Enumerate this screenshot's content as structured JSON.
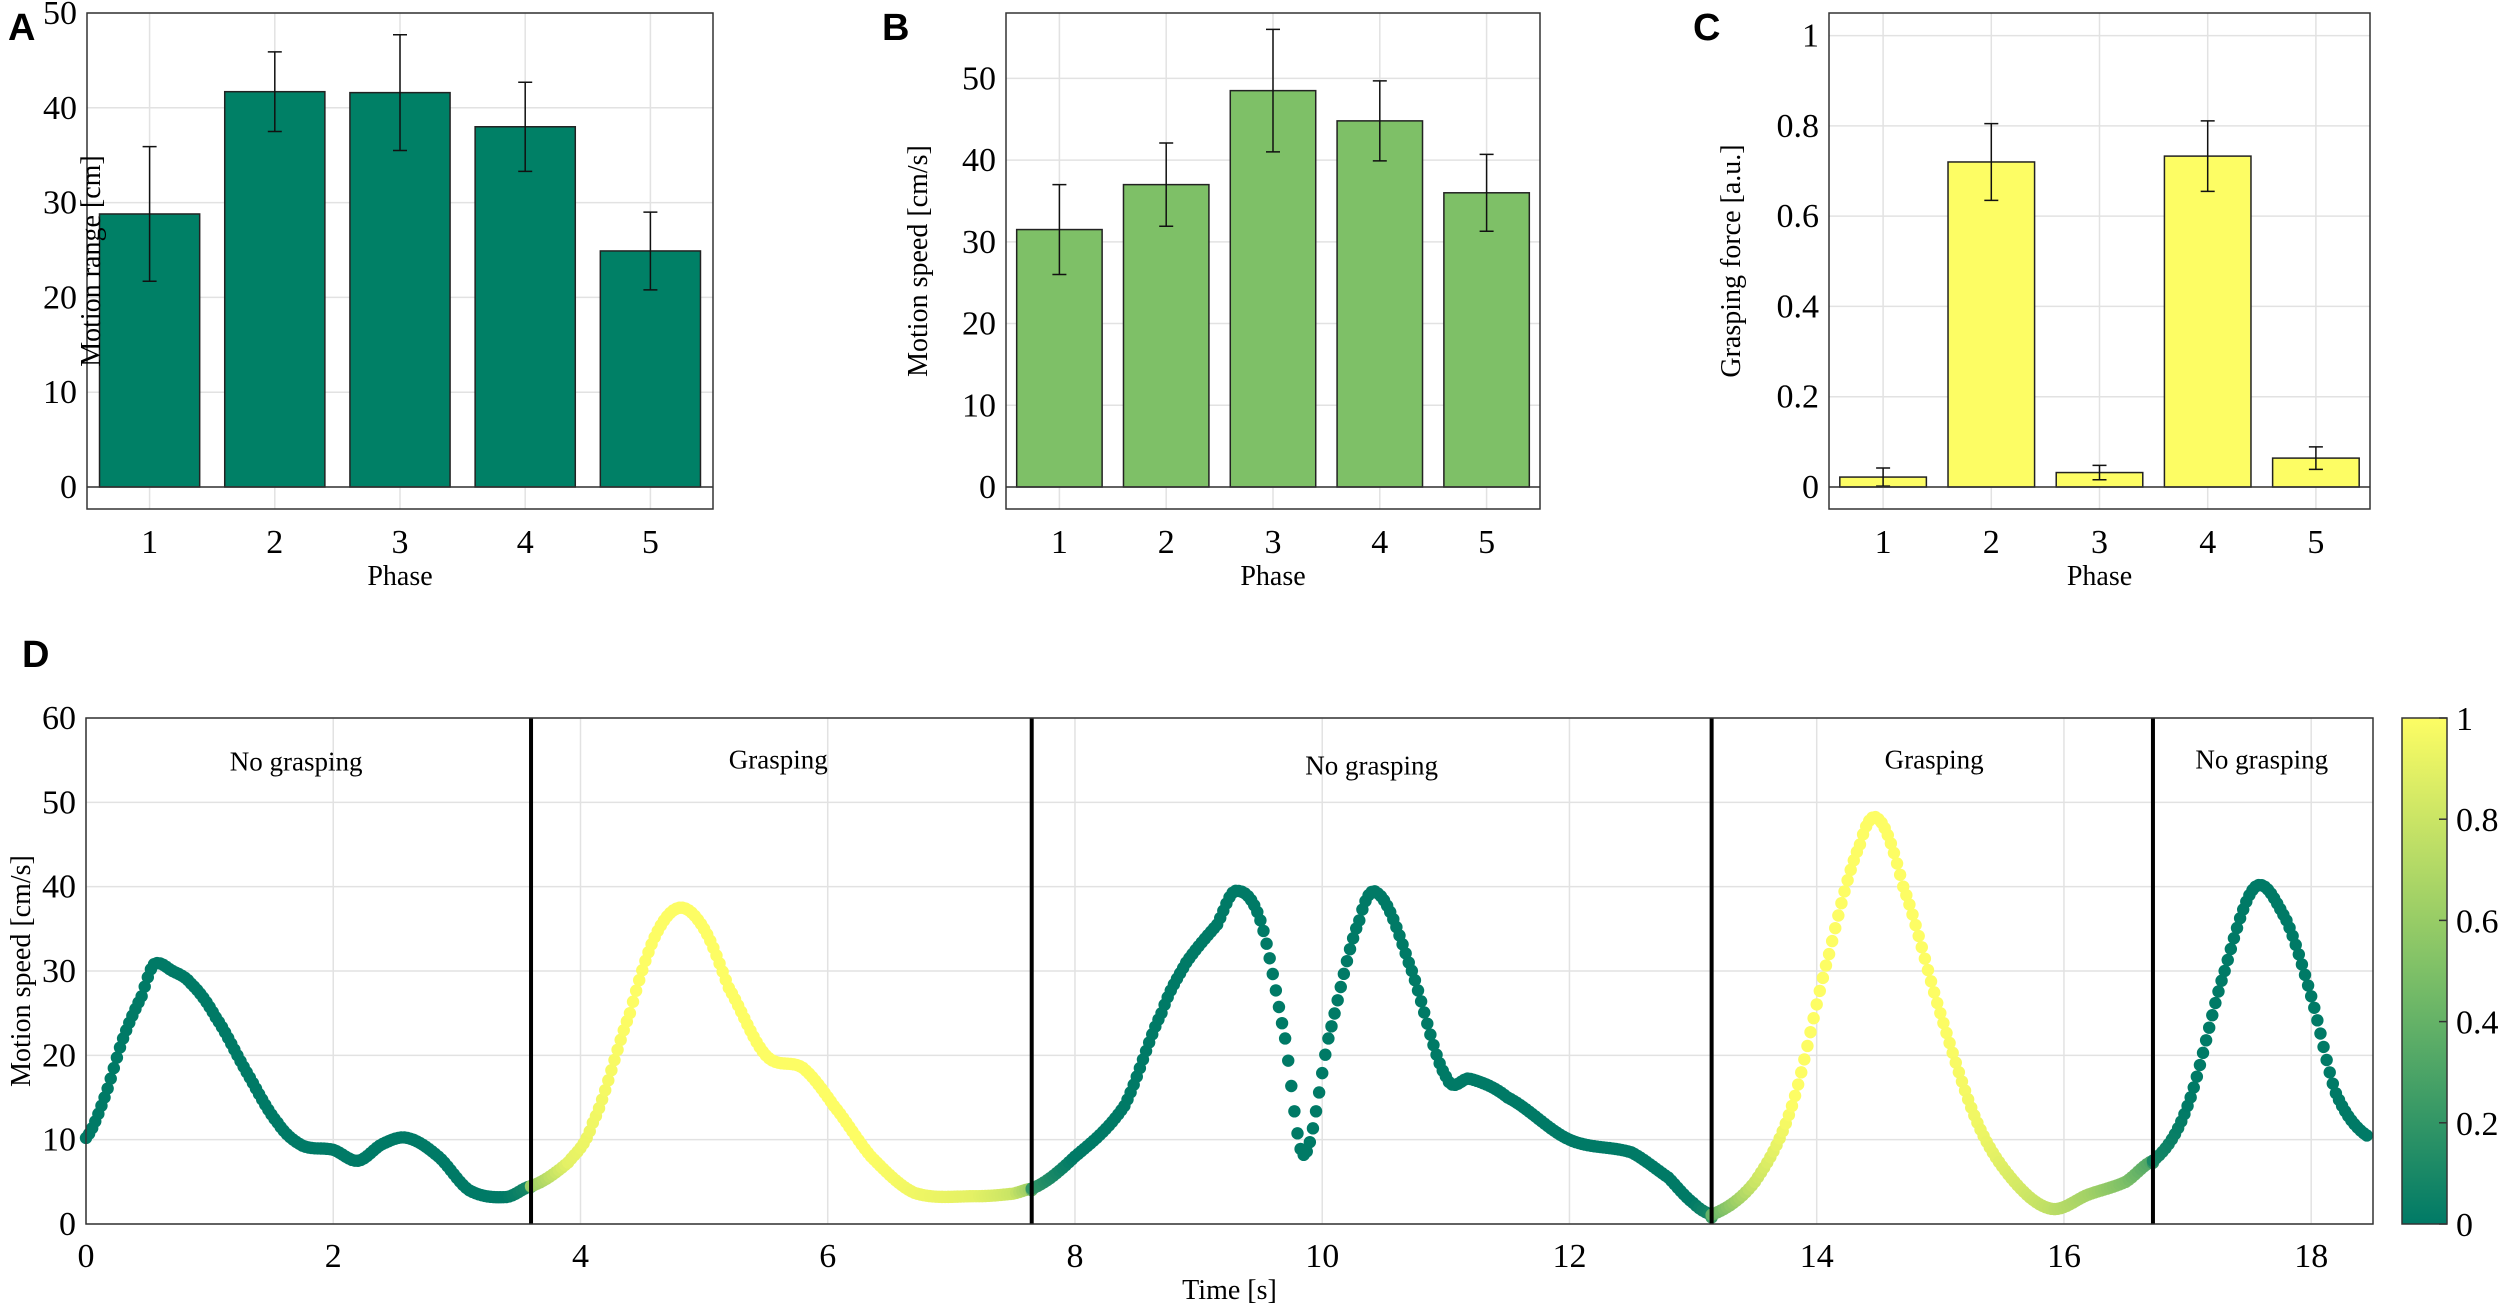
{
  "chart_data": [
    {
      "panel": "A",
      "type": "bar",
      "title": "",
      "categories": [
        "1",
        "2",
        "3",
        "4",
        "5"
      ],
      "values": [
        28.8,
        41.7,
        41.6,
        38.0,
        24.9
      ],
      "errors": [
        7.1,
        4.2,
        6.1,
        4.7,
        4.1
      ],
      "xlabel": "Phase",
      "ylabel": "Motion range [cm]",
      "ylim": [
        0,
        50
      ],
      "yticks": [
        "0",
        "10",
        "20",
        "30",
        "40",
        "50"
      ],
      "color": "#008066",
      "grid": true
    },
    {
      "panel": "B",
      "type": "bar",
      "title": "",
      "categories": [
        "1",
        "2",
        "3",
        "4",
        "5"
      ],
      "values": [
        31.5,
        37.0,
        48.5,
        44.8,
        36.0
      ],
      "errors": [
        5.5,
        5.1,
        7.5,
        4.9,
        4.7
      ],
      "xlabel": "Phase",
      "ylabel": "Motion speed [cm/s]",
      "ylim": [
        0,
        58
      ],
      "yticks": [
        "0",
        "10",
        "20",
        "30",
        "40",
        "50"
      ],
      "color": "#7ec067",
      "grid": true
    },
    {
      "panel": "C",
      "type": "bar",
      "title": "",
      "categories": [
        "1",
        "2",
        "3",
        "4",
        "5"
      ],
      "values": [
        0.022,
        0.72,
        0.032,
        0.733,
        0.064
      ],
      "errors": [
        0.02,
        0.085,
        0.016,
        0.078,
        0.025
      ],
      "xlabel": "Phase",
      "ylabel": "Grasping force [a.u.]",
      "ylim": [
        0,
        1.05
      ],
      "yticks": [
        "0",
        "0.2",
        "0.4",
        "0.6",
        "0.8",
        "1"
      ],
      "color": "#fdfd64",
      "grid": true
    },
    {
      "panel": "D",
      "type": "scatter",
      "title": "",
      "xlabel": "Time [s]",
      "ylabel": "Motion speed [cm/s]",
      "xlim": [
        0,
        18.5
      ],
      "ylim": [
        0,
        60
      ],
      "xticks": [
        "0",
        "2",
        "4",
        "6",
        "8",
        "10",
        "12",
        "14",
        "16",
        "18"
      ],
      "yticks": [
        "0",
        "10",
        "20",
        "30",
        "40",
        "50",
        "60"
      ],
      "colorbar": {
        "min": 0,
        "max": 1,
        "ticks": [
          "0",
          "0.2",
          "0.4",
          "0.6",
          "0.8",
          "1"
        ],
        "low_color": "#007a66",
        "mid_color": "#7ec067",
        "high_color": "#fdfd64"
      },
      "phase_boundaries": [
        3.6,
        7.65,
        13.15,
        16.72
      ],
      "phase_labels": [
        {
          "text": "No grasping",
          "x": 1.7,
          "y": 53.8
        },
        {
          "text": "Grasping",
          "x": 5.6,
          "y": 54.0
        },
        {
          "text": "No grasping",
          "x": 10.4,
          "y": 53.3
        },
        {
          "text": "Grasping",
          "x": 14.95,
          "y": 54.0
        },
        {
          "text": "No grasping",
          "x": 17.6,
          "y": 54.0
        }
      ],
      "series": [
        {
          "name": "motion speed",
          "points": [
            [
              0,
              10.2,
              0
            ],
            [
              0.15,
              15,
              0
            ],
            [
              0.3,
              22,
              0
            ],
            [
              0.45,
              27,
              0
            ],
            [
              0.55,
              30.8,
              0
            ],
            [
              0.7,
              30,
              0
            ],
            [
              0.85,
              28.5,
              0
            ],
            [
              1.05,
              24.5,
              0
            ],
            [
              1.3,
              18,
              0
            ],
            [
              1.55,
              12,
              0
            ],
            [
              1.75,
              9.3,
              0
            ],
            [
              2.0,
              8.8,
              0
            ],
            [
              2.2,
              7.5,
              0
            ],
            [
              2.4,
              9.5,
              0
            ],
            [
              2.6,
              10.2,
              0
            ],
            [
              2.85,
              8,
              0
            ],
            [
              3.1,
              4,
              0
            ],
            [
              3.4,
              3.2,
              0
            ],
            [
              3.6,
              4.5,
              0.1
            ],
            [
              3.6,
              4.5,
              0.6
            ],
            [
              3.9,
              7.3,
              0.9
            ],
            [
              4.1,
              12,
              0.95
            ],
            [
              4.4,
              25,
              1
            ],
            [
              4.6,
              34,
              1
            ],
            [
              4.8,
              37.5,
              1
            ],
            [
              5.0,
              35,
              1
            ],
            [
              5.2,
              28,
              1
            ],
            [
              5.5,
              20,
              1
            ],
            [
              5.8,
              18.5,
              1
            ],
            [
              6.05,
              14,
              1
            ],
            [
              6.35,
              8,
              1
            ],
            [
              6.7,
              3.7,
              0.95
            ],
            [
              7.2,
              3.3,
              0.9
            ],
            [
              7.5,
              3.6,
              0.8
            ],
            [
              7.65,
              4.2,
              0.6
            ],
            [
              7.65,
              4.2,
              0.2
            ],
            [
              8.0,
              8,
              0
            ],
            [
              8.4,
              14,
              0
            ],
            [
              8.7,
              25,
              0
            ],
            [
              8.9,
              31,
              0
            ],
            [
              9.15,
              35.5,
              0
            ],
            [
              9.3,
              39.5,
              0
            ],
            [
              9.5,
              36,
              0
            ],
            [
              9.7,
              22,
              0
            ],
            [
              9.85,
              8.2,
              0
            ],
            [
              10.05,
              22,
              0
            ],
            [
              10.3,
              36,
              0
            ],
            [
              10.45,
              39.2,
              0
            ],
            [
              10.7,
              31,
              0
            ],
            [
              11.0,
              17.5,
              0
            ],
            [
              11.2,
              17.2,
              0
            ],
            [
              11.5,
              15,
              0
            ],
            [
              12.0,
              10,
              0
            ],
            [
              12.5,
              8.5,
              0
            ],
            [
              12.8,
              5.5,
              0
            ],
            [
              13.0,
              2.5,
              0
            ],
            [
              13.15,
              1.1,
              0.1
            ],
            [
              13.15,
              1.1,
              0.4
            ],
            [
              13.5,
              5,
              0.8
            ],
            [
              13.8,
              14,
              1
            ],
            [
              14.1,
              32,
              1
            ],
            [
              14.35,
              45,
              1
            ],
            [
              14.5,
              48,
              1
            ],
            [
              14.7,
              40,
              1
            ],
            [
              15.0,
              25,
              1
            ],
            [
              15.3,
              12,
              0.95
            ],
            [
              15.6,
              5,
              0.85
            ],
            [
              15.9,
              1.8,
              0.75
            ],
            [
              16.2,
              3.5,
              0.65
            ],
            [
              16.5,
              5,
              0.5
            ],
            [
              16.72,
              7.5,
              0.3
            ],
            [
              16.72,
              7.5,
              0.1
            ],
            [
              17.0,
              14,
              0
            ],
            [
              17.3,
              30,
              0
            ],
            [
              17.55,
              40,
              0
            ],
            [
              17.8,
              36,
              0
            ],
            [
              18.0,
              27,
              0
            ],
            [
              18.2,
              15.5,
              0
            ],
            [
              18.45,
              10.5,
              0
            ]
          ]
        }
      ],
      "grid": true
    }
  ]
}
